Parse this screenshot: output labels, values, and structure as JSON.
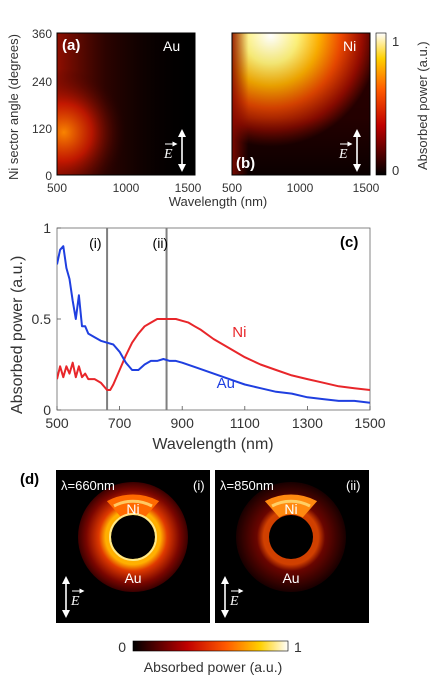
{
  "panels": {
    "a": {
      "label": "(a)",
      "metal": "Au",
      "ylabel": "Ni sector angle (degrees)",
      "yticks": [
        "360",
        "240",
        "120",
        "0"
      ],
      "xticks": [
        "500",
        "1000",
        "1500"
      ],
      "xlabel": "Wavelength (nm)",
      "e_label": "E"
    },
    "b": {
      "label": "(b)",
      "metal": "Ni",
      "xticks": [
        "500",
        "1000",
        "1500"
      ],
      "e_label": "E",
      "colorbar_ticks": [
        "1",
        "0"
      ],
      "colorbar_label": "Absorbed power (a.u.)"
    },
    "d": {
      "label": "(d)",
      "maps": [
        {
          "wavelength": "λ=660nm",
          "tag": "(i)",
          "top": "Ni",
          "bottom": "Au"
        },
        {
          "wavelength": "λ=850nm",
          "tag": "(ii)",
          "top": "Ni",
          "bottom": "Au"
        }
      ],
      "e_label": "E",
      "colorbar_ticks": [
        "0",
        "1"
      ],
      "colorbar_label": "Absorbed power (a.u.)"
    }
  },
  "colors": {
    "ni_series": "#e8262a",
    "au_series": "#1f3fe0",
    "marker_line": "#7f7f7f"
  },
  "chart_data": [
    {
      "type": "heatmap",
      "panel": "(a)",
      "title": "Au",
      "xlabel": "Wavelength (nm)",
      "ylabel": "Ni sector angle (degrees)",
      "xlim": [
        500,
        1500
      ],
      "ylim": [
        0,
        360
      ],
      "clim": [
        0,
        1
      ]
    },
    {
      "type": "heatmap",
      "panel": "(b)",
      "title": "Ni",
      "xlabel": "",
      "ylabel": "",
      "xlim": [
        500,
        1500
      ],
      "ylim": [
        0,
        360
      ],
      "clim": [
        0,
        1
      ]
    },
    {
      "type": "line",
      "panel": "(c)",
      "xlabel": "Wavelength (nm)",
      "ylabel": "Absorbed power (a.u.)",
      "xlim": [
        500,
        1500
      ],
      "ylim": [
        0,
        1
      ],
      "xticks": [
        500,
        700,
        900,
        1100,
        1300,
        1500
      ],
      "yticks": [
        0,
        0.5,
        1
      ],
      "yticklabels": [
        "0",
        "0.5",
        "1"
      ],
      "vlines": [
        {
          "x": 660,
          "label": "(i)"
        },
        {
          "x": 850,
          "label": "(ii)"
        }
      ],
      "series": [
        {
          "name": "Ni",
          "color": "#e8262a",
          "x": [
            500,
            510,
            520,
            530,
            540,
            550,
            560,
            570,
            580,
            590,
            600,
            620,
            640,
            660,
            670,
            680,
            700,
            720,
            740,
            760,
            780,
            800,
            820,
            840,
            860,
            880,
            900,
            920,
            940,
            960,
            1000,
            1050,
            1100,
            1150,
            1200,
            1250,
            1300,
            1350,
            1400,
            1450,
            1500
          ],
          "y": [
            0.17,
            0.24,
            0.18,
            0.24,
            0.2,
            0.26,
            0.18,
            0.24,
            0.18,
            0.2,
            0.17,
            0.17,
            0.15,
            0.11,
            0.11,
            0.14,
            0.22,
            0.3,
            0.37,
            0.42,
            0.46,
            0.48,
            0.5,
            0.5,
            0.5,
            0.5,
            0.49,
            0.48,
            0.46,
            0.44,
            0.39,
            0.34,
            0.29,
            0.25,
            0.22,
            0.19,
            0.17,
            0.15,
            0.13,
            0.12,
            0.11
          ]
        },
        {
          "name": "Au",
          "color": "#1f3fe0",
          "x": [
            500,
            510,
            520,
            530,
            540,
            550,
            560,
            570,
            580,
            590,
            600,
            620,
            640,
            660,
            680,
            700,
            720,
            740,
            760,
            780,
            800,
            820,
            840,
            860,
            880,
            900,
            950,
            1000,
            1050,
            1100,
            1150,
            1200,
            1250,
            1300,
            1350,
            1400,
            1450,
            1500
          ],
          "y": [
            0.8,
            0.88,
            0.9,
            0.78,
            0.72,
            0.6,
            0.5,
            0.63,
            0.46,
            0.46,
            0.42,
            0.4,
            0.38,
            0.37,
            0.36,
            0.32,
            0.26,
            0.22,
            0.22,
            0.25,
            0.27,
            0.27,
            0.28,
            0.27,
            0.27,
            0.26,
            0.23,
            0.2,
            0.17,
            0.14,
            0.12,
            0.1,
            0.09,
            0.07,
            0.06,
            0.05,
            0.05,
            0.04
          ]
        }
      ]
    }
  ]
}
